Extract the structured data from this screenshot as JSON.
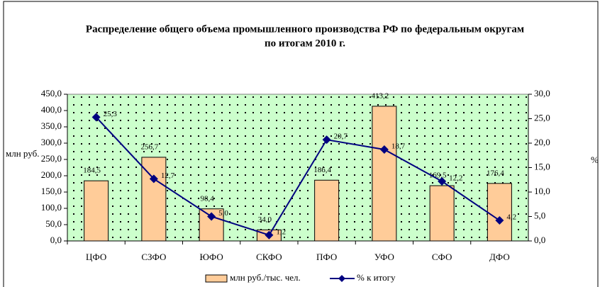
{
  "chart_data": {
    "type": "combo",
    "title": "Распределение общего объема промышленного производства РФ по федеральным округам",
    "subtitle": "по итогам 2010 г.",
    "y_label": "млн руб.",
    "y2_label": "%",
    "categories": [
      "ЦФО",
      "СЗФО",
      "ЮФО",
      "СКФО",
      "ПФО",
      "УФО",
      "СФО",
      "ДФО"
    ],
    "series": [
      {
        "name": "млн руб./тыс. чел.",
        "type": "bar",
        "color": "#ffcc99",
        "values": [
          184.5,
          256.7,
          98.4,
          34.0,
          186.4,
          413.2,
          169.5,
          176.4
        ],
        "value_labels": [
          "184,5",
          "256,7",
          "98,4",
          "34,0",
          "186,4",
          "413,2",
          "169,5",
          "176,4"
        ]
      },
      {
        "name": "% к итогу",
        "type": "line",
        "axis": "y2",
        "color": "#000080",
        "values": [
          25.3,
          12.7,
          5.0,
          1.2,
          20.7,
          18.7,
          12.2,
          4.2
        ],
        "value_labels": [
          "25,3",
          "12,7",
          "5,0",
          "1,2",
          "20,7",
          "18,7",
          "12,2",
          "4,2"
        ]
      }
    ],
    "ylim": [
      0,
      450
    ],
    "yticks": [
      {
        "value": 0,
        "label": "0,0"
      },
      {
        "value": 50,
        "label": "50,0"
      },
      {
        "value": 100,
        "label": "100,0"
      },
      {
        "value": 150,
        "label": "150,0"
      },
      {
        "value": 200,
        "label": "200,0"
      },
      {
        "value": 250,
        "label": "250,0"
      },
      {
        "value": 300,
        "label": "300,0"
      },
      {
        "value": 350,
        "label": "350,0"
      },
      {
        "value": 400,
        "label": "400,0"
      },
      {
        "value": 450,
        "label": "450,0"
      }
    ],
    "y2lim": [
      0,
      30
    ],
    "y2ticks": [
      {
        "value": 0,
        "label": "0,0"
      },
      {
        "value": 5,
        "label": "5,0"
      },
      {
        "value": 10,
        "label": "10,0"
      },
      {
        "value": 15,
        "label": "15,0"
      },
      {
        "value": 20,
        "label": "20,0"
      },
      {
        "value": 25,
        "label": "25,0"
      },
      {
        "value": 30,
        "label": "30,0"
      }
    ],
    "legend": "bottom"
  }
}
